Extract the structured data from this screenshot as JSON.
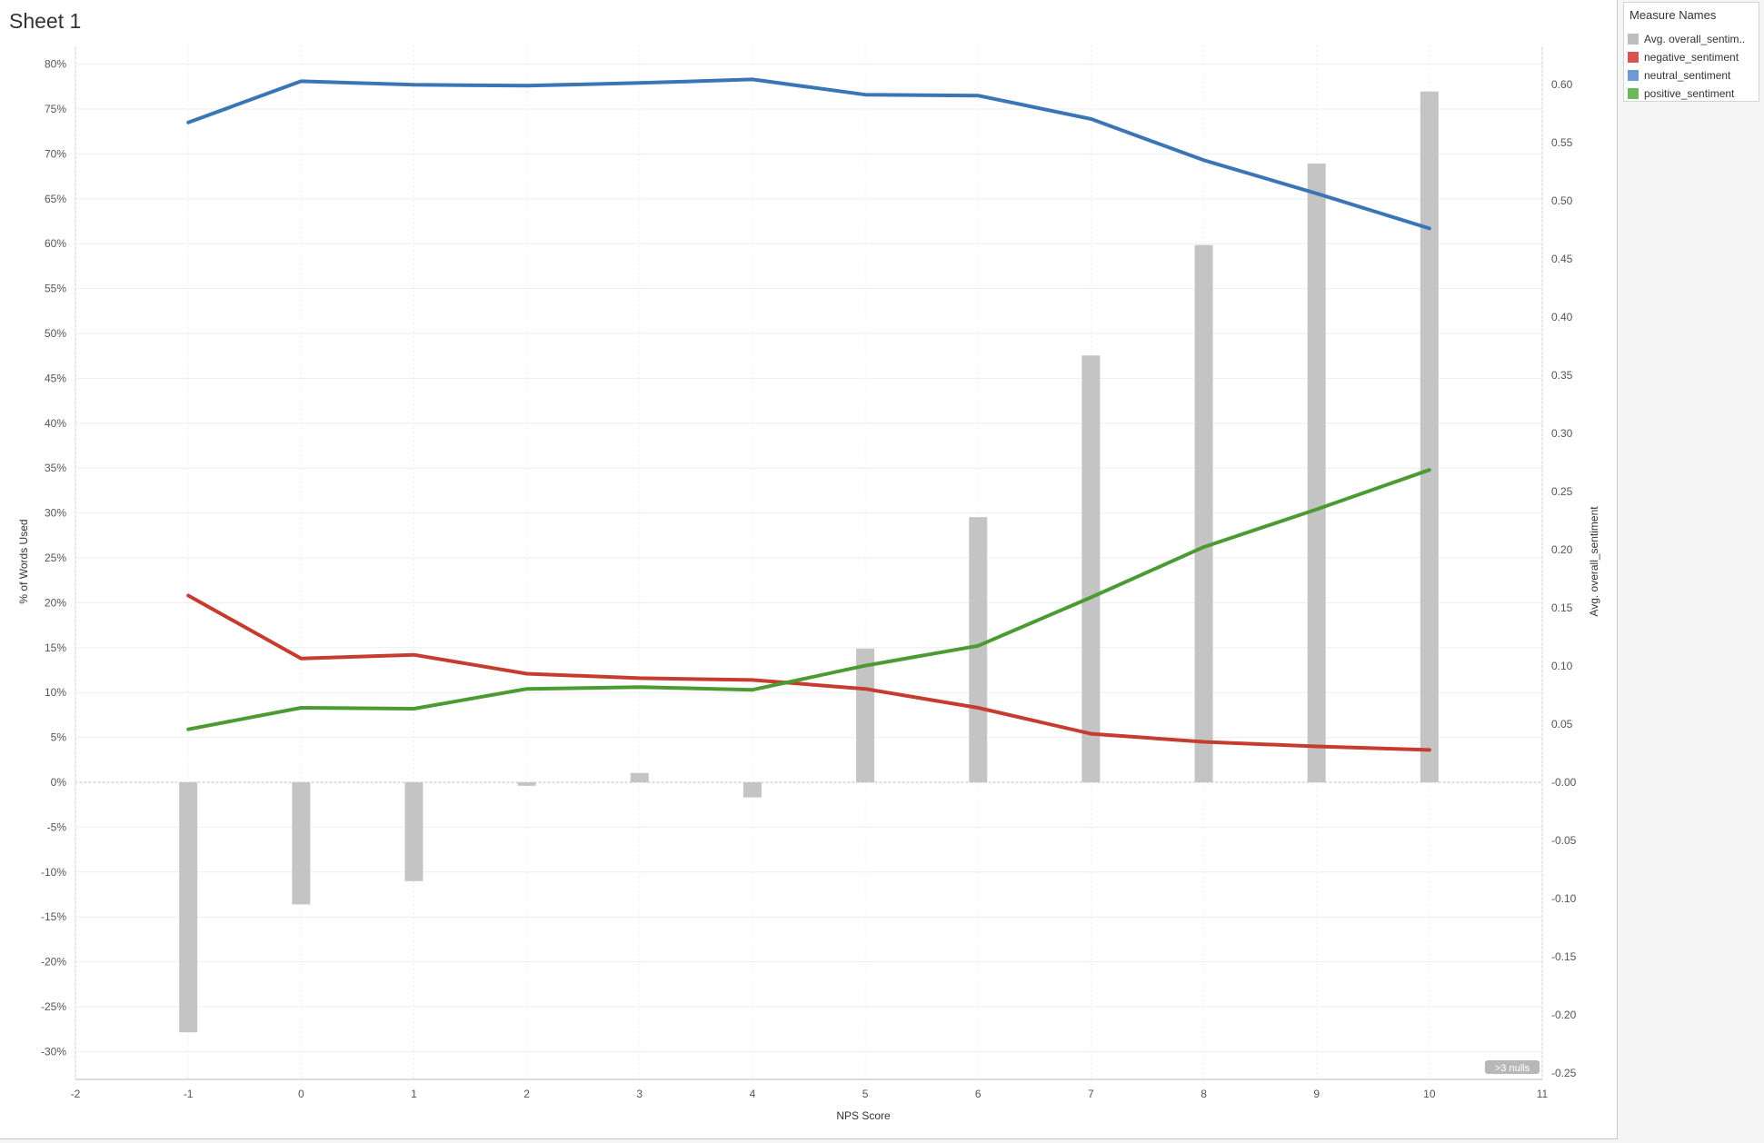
{
  "sheet": {
    "title": "Sheet 1"
  },
  "legend": {
    "title": "Measure Names",
    "items": [
      {
        "label": "Avg. overall_sentim..",
        "color": "#bdbdbd"
      },
      {
        "label": "negative_sentiment",
        "color": "#d9534f"
      },
      {
        "label": "neutral_sentiment",
        "color": "#6b9bd1"
      },
      {
        "label": "positive_sentiment",
        "color": "#6cb85a"
      }
    ]
  },
  "nulls_indicator": ">3 nulls",
  "chart_data": {
    "type": "line",
    "xlabel": "NPS Score",
    "ylabel": "% of Words Used",
    "y2label": "Avg. overall_sentiment",
    "xlim": [
      -2,
      11
    ],
    "ylim": [
      -32,
      82
    ],
    "y2lim": [
      -0.25,
      0.64
    ],
    "x_ticks": [
      -2,
      -1,
      0,
      1,
      2,
      3,
      4,
      5,
      6,
      7,
      8,
      9,
      10,
      11
    ],
    "y_ticks": [
      "80%",
      "75%",
      "70%",
      "65%",
      "60%",
      "55%",
      "50%",
      "45%",
      "40%",
      "35%",
      "30%",
      "25%",
      "20%",
      "15%",
      "10%",
      "5%",
      "0%",
      "-5%",
      "-10%",
      "-15%",
      "-20%",
      "-25%",
      "-30%"
    ],
    "y2_ticks": [
      "0.60",
      "0.55",
      "0.50",
      "0.45",
      "0.40",
      "0.35",
      "0.30",
      "0.25",
      "0.20",
      "0.15",
      "0.10",
      "0.05",
      "-0.00",
      "-0.05",
      "-0.10",
      "-0.15",
      "-0.20",
      "-0.25"
    ],
    "x": [
      -1,
      0,
      1,
      2,
      3,
      4,
      5,
      6,
      7,
      8,
      9,
      10
    ],
    "series": [
      {
        "name": "neutral_sentiment",
        "axis": "left",
        "mark": "line",
        "color": "#3a75b5",
        "values": [
          73.5,
          78.1,
          77.7,
          77.6,
          77.9,
          78.3,
          76.6,
          76.5,
          73.9,
          69.3,
          65.6,
          61.7
        ]
      },
      {
        "name": "negative_sentiment",
        "axis": "left",
        "mark": "line",
        "color": "#c63d2f",
        "values": [
          20.8,
          13.8,
          14.2,
          12.1,
          11.6,
          11.4,
          10.4,
          8.3,
          5.4,
          4.5,
          4.0,
          3.6
        ]
      },
      {
        "name": "positive_sentiment",
        "axis": "left",
        "mark": "line",
        "color": "#4c9a34",
        "values": [
          5.9,
          8.3,
          8.2,
          10.4,
          10.6,
          10.3,
          13.0,
          15.2,
          20.6,
          26.2,
          30.4,
          34.8
        ]
      },
      {
        "name": "Avg. overall_sentiment",
        "axis": "right",
        "mark": "bar",
        "color": "#c4c4c4",
        "values": [
          -0.215,
          -0.105,
          -0.085,
          -0.003,
          0.008,
          -0.013,
          0.115,
          0.228,
          0.367,
          0.462,
          0.532,
          0.594
        ]
      }
    ],
    "grid": true,
    "legend_position": "right"
  }
}
